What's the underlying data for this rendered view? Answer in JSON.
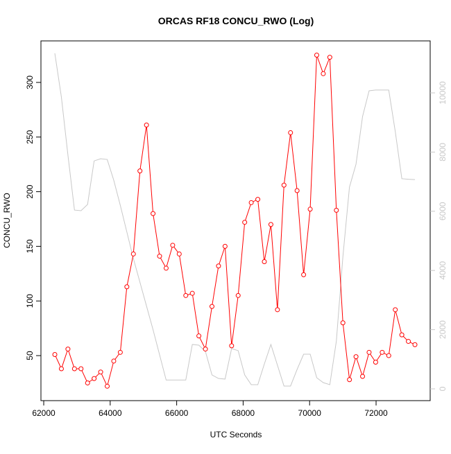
{
  "chart_data": {
    "type": "line",
    "title": "ORCAS RF18 CONCU_RWO (Log)",
    "xlabel": "UTC Seconds",
    "ylabel": "CONCU_RWO",
    "x": [
      62334,
      62531,
      62728,
      62925,
      63122,
      63319,
      63516,
      63713,
      63910,
      64107,
      64304,
      64501,
      64698,
      64895,
      65092,
      65289,
      65486,
      65683,
      65880,
      66077,
      66274,
      66471,
      66668,
      66865,
      67062,
      67259,
      67456,
      67653,
      67850,
      68047,
      68244,
      68441,
      68638,
      68835,
      69032,
      69229,
      69426,
      69623,
      69820,
      70017,
      70214,
      70411,
      70608,
      70805,
      71002,
      71199,
      71396,
      71593,
      71790,
      71987,
      72184,
      72381,
      72578,
      72775,
      72972,
      73169
    ],
    "series": [
      {
        "color": "#ff0000",
        "markers": true,
        "values": [
          51,
          38,
          56,
          38,
          38,
          25,
          29,
          35,
          22,
          45,
          53,
          113,
          143,
          219,
          261,
          180,
          141,
          130,
          151,
          143,
          105,
          107,
          68,
          56,
          95,
          132,
          150,
          59,
          105,
          172,
          190,
          193,
          136,
          170,
          92,
          206,
          254,
          201,
          124,
          184,
          325,
          308,
          323,
          183,
          80,
          28,
          49,
          31,
          53,
          44,
          53,
          50,
          92,
          69,
          63,
          60
        ]
      },
      {
        "color": "#c8c8c8",
        "markers": false,
        "axis": "y2",
        "values": [
          11335,
          9860,
          7900,
          6040,
          6020,
          6230,
          7700,
          7775,
          7750,
          7050,
          6200,
          5300,
          4400,
          3600,
          2800,
          2000,
          1150,
          300,
          300,
          300,
          300,
          1500,
          1475,
          1265,
          470,
          350,
          330,
          1360,
          1290,
          470,
          140,
          140,
          840,
          1500,
          800,
          95,
          95,
          655,
          1170,
          1170,
          375,
          210,
          140,
          1615,
          4470,
          6815,
          7590,
          9200,
          10070,
          10095,
          10095,
          10095,
          8690,
          7100,
          7080,
          7070
        ]
      }
    ],
    "xlim": [
      61916,
      73628
    ],
    "xticks": [
      62000,
      64000,
      66000,
      68000,
      70000,
      72000
    ],
    "ylim": [
      8.8,
      338
    ],
    "yticks": [
      50,
      100,
      150,
      200,
      250,
      300
    ],
    "y2lim": [
      -398,
      11756
    ],
    "y2ticks": [
      0,
      2000,
      4000,
      6000,
      8000,
      10000
    ]
  }
}
